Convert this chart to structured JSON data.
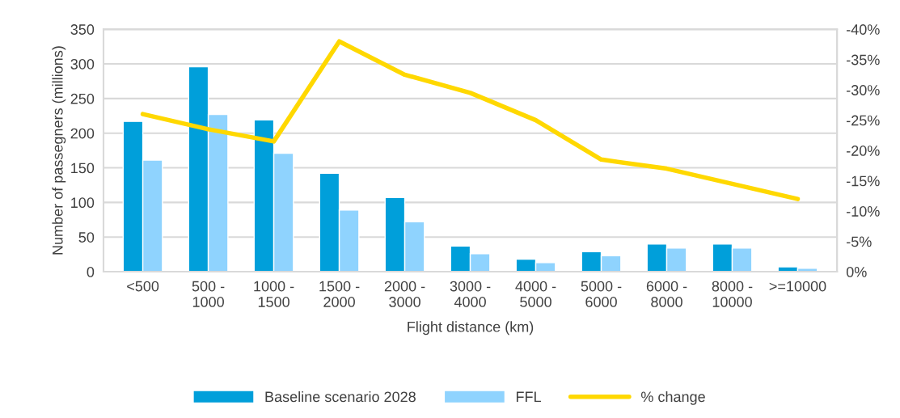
{
  "chart_data": {
    "type": "bar",
    "xlabel": "Flight distance (km)",
    "ylabel": "Number of passegners (millions)",
    "categories": [
      "<500",
      "500 -\n1000",
      "1000 -\n1500",
      "1500 -\n2000",
      "2000 -\n3000",
      "3000 -\n4000",
      "4000 -\n5000",
      "5000 -\n6000",
      "6000 -\n8000",
      "8000 -\n10000",
      ">=10000"
    ],
    "series": [
      {
        "name": "Baseline scenario 2028",
        "color": "#009fda",
        "values": [
          217,
          296,
          219,
          142,
          107,
          37,
          18,
          29,
          40,
          40,
          7
        ]
      },
      {
        "name": "FFL",
        "color": "#8fd3fe",
        "values": [
          161,
          227,
          171,
          89,
          72,
          26,
          13,
          23,
          34,
          34,
          5
        ]
      },
      {
        "name": "% change",
        "type": "line",
        "axis": "y2",
        "color": "#ffd800",
        "values": [
          -26,
          -23.5,
          -21.5,
          -38,
          -32.5,
          -29.5,
          -25,
          -18.5,
          -17,
          -14.5,
          -12
        ]
      }
    ],
    "ylim": [
      0,
      350
    ],
    "yticks": [
      0,
      50,
      100,
      150,
      200,
      250,
      300,
      350
    ],
    "y2lim": [
      0,
      -40
    ],
    "y2ticks": [
      {
        "value": 0,
        "label": "0%"
      },
      {
        "value": -5,
        "label": "-5%"
      },
      {
        "value": -10,
        "label": "-10%"
      },
      {
        "value": -15,
        "label": "-15%"
      },
      {
        "value": -20,
        "label": "-20%"
      },
      {
        "value": -25,
        "label": "-25%"
      },
      {
        "value": -30,
        "label": "-30%"
      },
      {
        "value": -35,
        "label": "-35%"
      },
      {
        "value": -40,
        "label": "-40%"
      }
    ],
    "grid": "y",
    "legend": "bottom"
  }
}
